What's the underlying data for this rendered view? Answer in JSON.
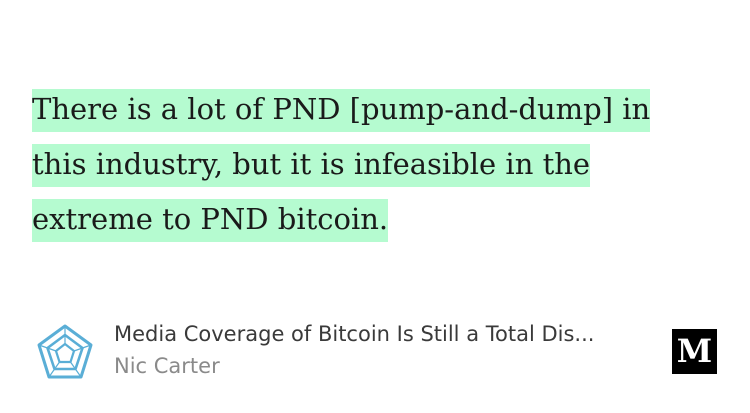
{
  "quote": {
    "text": "There is a lot of PND [pump-and-dump] in this industry, but it is infeasible in the extreme to PND bitcoin.",
    "highlight_color": "#b5fbd0"
  },
  "card": {
    "logo_icon": "pentagon-logo-icon",
    "logo_color": "#5aaed6",
    "title": "Media Coverage of Bitcoin Is Still a Total Dis...",
    "author": "Nic Carter",
    "brand_icon": "medium-logo-icon",
    "brand_letter": "M"
  }
}
